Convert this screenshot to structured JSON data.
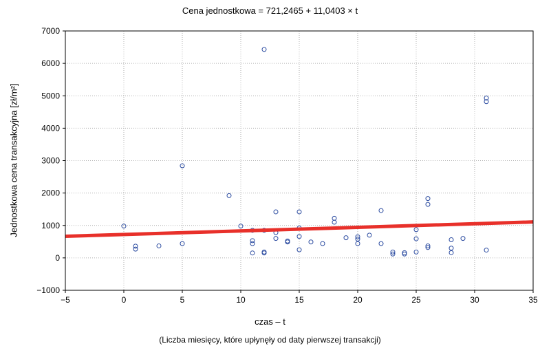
{
  "chart_data": {
    "type": "scatter",
    "title": "Cena jednostkowa = 721,2465 + 11,0403 × t",
    "xlabel": "czas – t",
    "xlabel_note": "(Liczba miesięcy, które upłynęły od daty pierwszej transakcji)",
    "ylabel": "Jednostkowa cena transakcyjna [zł/m²]",
    "xlim": [
      -5,
      35
    ],
    "ylim": [
      -1000,
      7000
    ],
    "xticks": [
      "−5",
      "0",
      "5",
      "10",
      "15",
      "20",
      "25",
      "30",
      "35"
    ],
    "yticks": [
      "−1000",
      "0",
      "1000",
      "2000",
      "3000",
      "4000",
      "5000",
      "6000",
      "7000"
    ],
    "grid": true,
    "marker_color": "#2b4ba0",
    "line_color": "#e8302a",
    "regression": {
      "intercept": 721.2465,
      "slope": 11.0403
    },
    "points": [
      [
        0,
        980
      ],
      [
        1,
        360
      ],
      [
        1,
        270
      ],
      [
        3,
        370
      ],
      [
        5,
        2840
      ],
      [
        5,
        440
      ],
      [
        9,
        1920
      ],
      [
        10,
        980
      ],
      [
        11,
        850
      ],
      [
        11,
        530
      ],
      [
        11,
        440
      ],
      [
        11,
        150
      ],
      [
        12,
        6430
      ],
      [
        12,
        850
      ],
      [
        12,
        180
      ],
      [
        12,
        150
      ],
      [
        13,
        1420
      ],
      [
        13,
        780
      ],
      [
        13,
        600
      ],
      [
        14,
        520
      ],
      [
        14,
        490
      ],
      [
        15,
        1420
      ],
      [
        15,
        920
      ],
      [
        15,
        660
      ],
      [
        15,
        250
      ],
      [
        16,
        490
      ],
      [
        17,
        440
      ],
      [
        18,
        1220
      ],
      [
        18,
        1100
      ],
      [
        19,
        620
      ],
      [
        20,
        650
      ],
      [
        20,
        580
      ],
      [
        20,
        440
      ],
      [
        21,
        700
      ],
      [
        22,
        1460
      ],
      [
        22,
        440
      ],
      [
        23,
        180
      ],
      [
        23,
        120
      ],
      [
        24,
        160
      ],
      [
        24,
        120
      ],
      [
        25,
        870
      ],
      [
        25,
        590
      ],
      [
        25,
        180
      ],
      [
        26,
        1830
      ],
      [
        26,
        1650
      ],
      [
        26,
        370
      ],
      [
        26,
        320
      ],
      [
        28,
        560
      ],
      [
        28,
        300
      ],
      [
        28,
        160
      ],
      [
        29,
        600
      ],
      [
        31,
        4930
      ],
      [
        31,
        4820
      ],
      [
        31,
        240
      ]
    ]
  }
}
